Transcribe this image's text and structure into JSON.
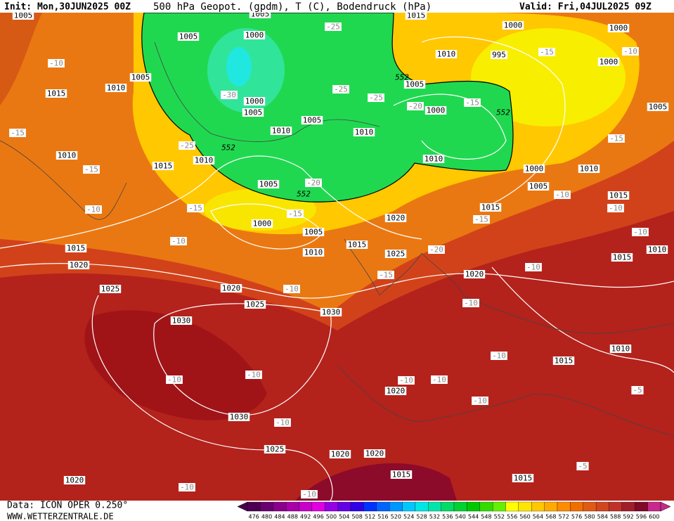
{
  "header": {
    "init": "Init: Mon,30JUN2025 00Z",
    "title": "500 hPa Geopot. (gpdm), T (C), Bodendruck (hPa)",
    "valid": "Valid: Fri,04JUL2025 09Z"
  },
  "map": {
    "isobar_labels": [
      "1005",
      "1005",
      "1015",
      "1000",
      "1000",
      "1005",
      "1000",
      "1010",
      "995",
      "1000",
      "1005",
      "1005",
      "1015",
      "1010",
      "1000",
      "1005",
      "1000",
      "1005",
      "1005",
      "1010",
      "1010",
      "1010",
      "1010",
      "1010",
      "1015",
      "1000",
      "1010",
      "1005",
      "1005",
      "1015",
      "1015",
      "1020",
      "1000",
      "1005",
      "1015",
      "1010",
      "1015",
      "1025",
      "1010",
      "1015",
      "1020",
      "1020",
      "1025",
      "1020",
      "1025",
      "1030",
      "1030",
      "1010",
      "1015",
      "1020",
      "1030",
      "1025",
      "1020",
      "1020",
      "1015",
      "1015",
      "1020"
    ],
    "temperature_labels": [
      "-10",
      "-15",
      "-15",
      "-10",
      "-25",
      "-15",
      "-10",
      "-30",
      "-25",
      "-25",
      "-20",
      "-15",
      "-25",
      "-20",
      "-15",
      "-15",
      "-10",
      "-15",
      "-10",
      "-10",
      "-15",
      "-10",
      "-20",
      "-15",
      "-10",
      "-10",
      "-10",
      "-10",
      "-10",
      "-10",
      "-10",
      "-10",
      "-10",
      "-10",
      "-5",
      "-5",
      "-10",
      "-10"
    ],
    "geopotential_labels": [
      "552",
      "552",
      "552",
      "552"
    ]
  },
  "footer": {
    "data": "Data: ICON OPER 0.250°",
    "site": "WWW.WETTERZENTRALE.DE"
  },
  "legend": {
    "ticks": [
      476,
      480,
      484,
      488,
      492,
      496,
      500,
      504,
      508,
      512,
      516,
      520,
      524,
      528,
      532,
      536,
      540,
      544,
      548,
      552,
      556,
      560,
      564,
      568,
      572,
      576,
      580,
      584,
      588,
      592,
      596,
      600
    ],
    "colors": [
      "#4b0050",
      "#6a0070",
      "#8a008a",
      "#a800a8",
      "#c800c8",
      "#e000e0",
      "#9600e6",
      "#6400e6",
      "#3200e6",
      "#0032ff",
      "#0064ff",
      "#0096ff",
      "#00c8ff",
      "#00e6e6",
      "#00e6aa",
      "#00dc64",
      "#00d232",
      "#00c800",
      "#32dc00",
      "#64f000",
      "#ffff00",
      "#ffe600",
      "#ffc800",
      "#ffaa00",
      "#ff8c00",
      "#f06e00",
      "#e05a14",
      "#d0461e",
      "#c03228",
      "#a01e28",
      "#800a28",
      "#c8288c"
    ]
  }
}
